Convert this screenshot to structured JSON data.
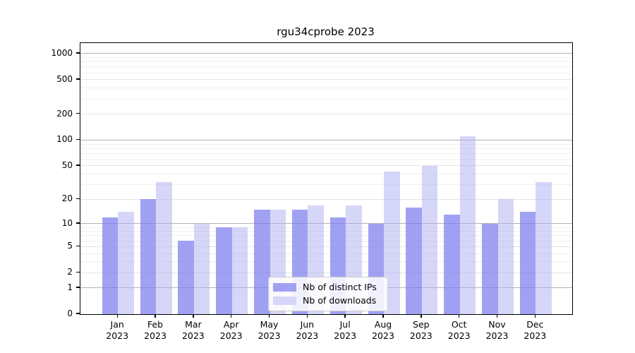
{
  "chart_data": {
    "type": "bar",
    "title": "rgu34cprobe 2023",
    "categories": [
      "Jan",
      "Feb",
      "Mar",
      "Apr",
      "May",
      "Jun",
      "Jul",
      "Aug",
      "Sep",
      "Oct",
      "Nov",
      "Dec"
    ],
    "year_label": "2023",
    "series": [
      {
        "name": "Nb of distinct IPs",
        "values": [
          12,
          20,
          6,
          9,
          15,
          15,
          12,
          10,
          16,
          13,
          10,
          14
        ],
        "bar_color": "#7d7deeb8",
        "legend_color": "#a1a1f1"
      },
      {
        "name": "Nb of downloads",
        "values": [
          14,
          32,
          10,
          9,
          15,
          17,
          17,
          43,
          50,
          110,
          20,
          32
        ],
        "bar_color": "#adadf280",
        "legend_color": "#d6d6f8"
      }
    ],
    "xlabel": "",
    "ylabel": "",
    "yscale": "log1p",
    "ylim": [
      0,
      1320
    ],
    "yticks": [
      0,
      1,
      2,
      5,
      10,
      20,
      50,
      100,
      200,
      500,
      1000
    ],
    "grid_on": true,
    "grid_major": [
      1,
      10,
      100,
      1000
    ],
    "grid_mid": [
      2,
      5,
      20,
      50,
      200,
      500
    ],
    "grid_minor": [
      3,
      4,
      6,
      7,
      8,
      9,
      30,
      40,
      60,
      70,
      80,
      90,
      300,
      400,
      600,
      700,
      800,
      900
    ],
    "legend_position": "lower center"
  },
  "colors": {
    "background": "#ffffff",
    "spine": "#000000",
    "grid_major": "#b3b3b3",
    "grid_mid": "#e4e4e4",
    "grid_minor": "#efefef",
    "text": "#000000",
    "legend_border": "#cccccc"
  }
}
